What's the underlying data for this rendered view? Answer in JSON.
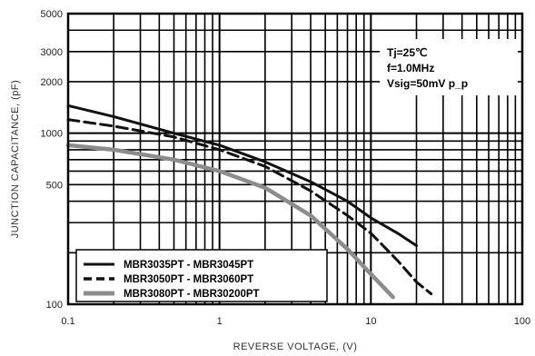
{
  "chart_data": {
    "type": "line",
    "xlabel": "REVERSE VOLTAGE, (V)",
    "ylabel": "JUNCTION CAPACITANCE, (pF)",
    "x_scale": "log",
    "y_scale": "log",
    "xlim": [
      0.1,
      100
    ],
    "ylim": [
      100,
      5000
    ],
    "x_ticks": [
      "0.1",
      "1",
      "10",
      "100"
    ],
    "y_ticks": [
      "100",
      "500",
      "1000",
      "2000",
      "3000",
      "5000"
    ],
    "grid": true,
    "annotations": [
      "Tj=25℃",
      "f=1.0MHz",
      "Vsig=50mV p_p"
    ],
    "legend_position": "bottom-left",
    "series": [
      {
        "name": "MBR3035PT - MBR3045PT",
        "style": "solid",
        "color": "#111111",
        "points": [
          [
            0.1,
            1450
          ],
          [
            0.2,
            1250
          ],
          [
            0.5,
            1000
          ],
          [
            1,
            850
          ],
          [
            2,
            680
          ],
          [
            4,
            520
          ],
          [
            7,
            400
          ],
          [
            10,
            320
          ],
          [
            15,
            260
          ],
          [
            20,
            220
          ]
        ]
      },
      {
        "name": "MBR3050PT - MBR3060PT",
        "style": "dashed",
        "color": "#111111",
        "points": [
          [
            0.1,
            1200
          ],
          [
            0.2,
            1100
          ],
          [
            0.5,
            950
          ],
          [
            1,
            800
          ],
          [
            2,
            640
          ],
          [
            4,
            460
          ],
          [
            7,
            330
          ],
          [
            10,
            260
          ],
          [
            15,
            180
          ],
          [
            20,
            135
          ],
          [
            25,
            115
          ]
        ]
      },
      {
        "name": "MBR3080PT - MBR30200PT",
        "style": "solid",
        "color": "#8c8c8c",
        "points": [
          [
            0.1,
            850
          ],
          [
            0.2,
            800
          ],
          [
            0.5,
            700
          ],
          [
            1,
            600
          ],
          [
            2,
            480
          ],
          [
            4,
            330
          ],
          [
            7,
            210
          ],
          [
            10,
            150
          ],
          [
            14,
            110
          ]
        ]
      }
    ]
  }
}
